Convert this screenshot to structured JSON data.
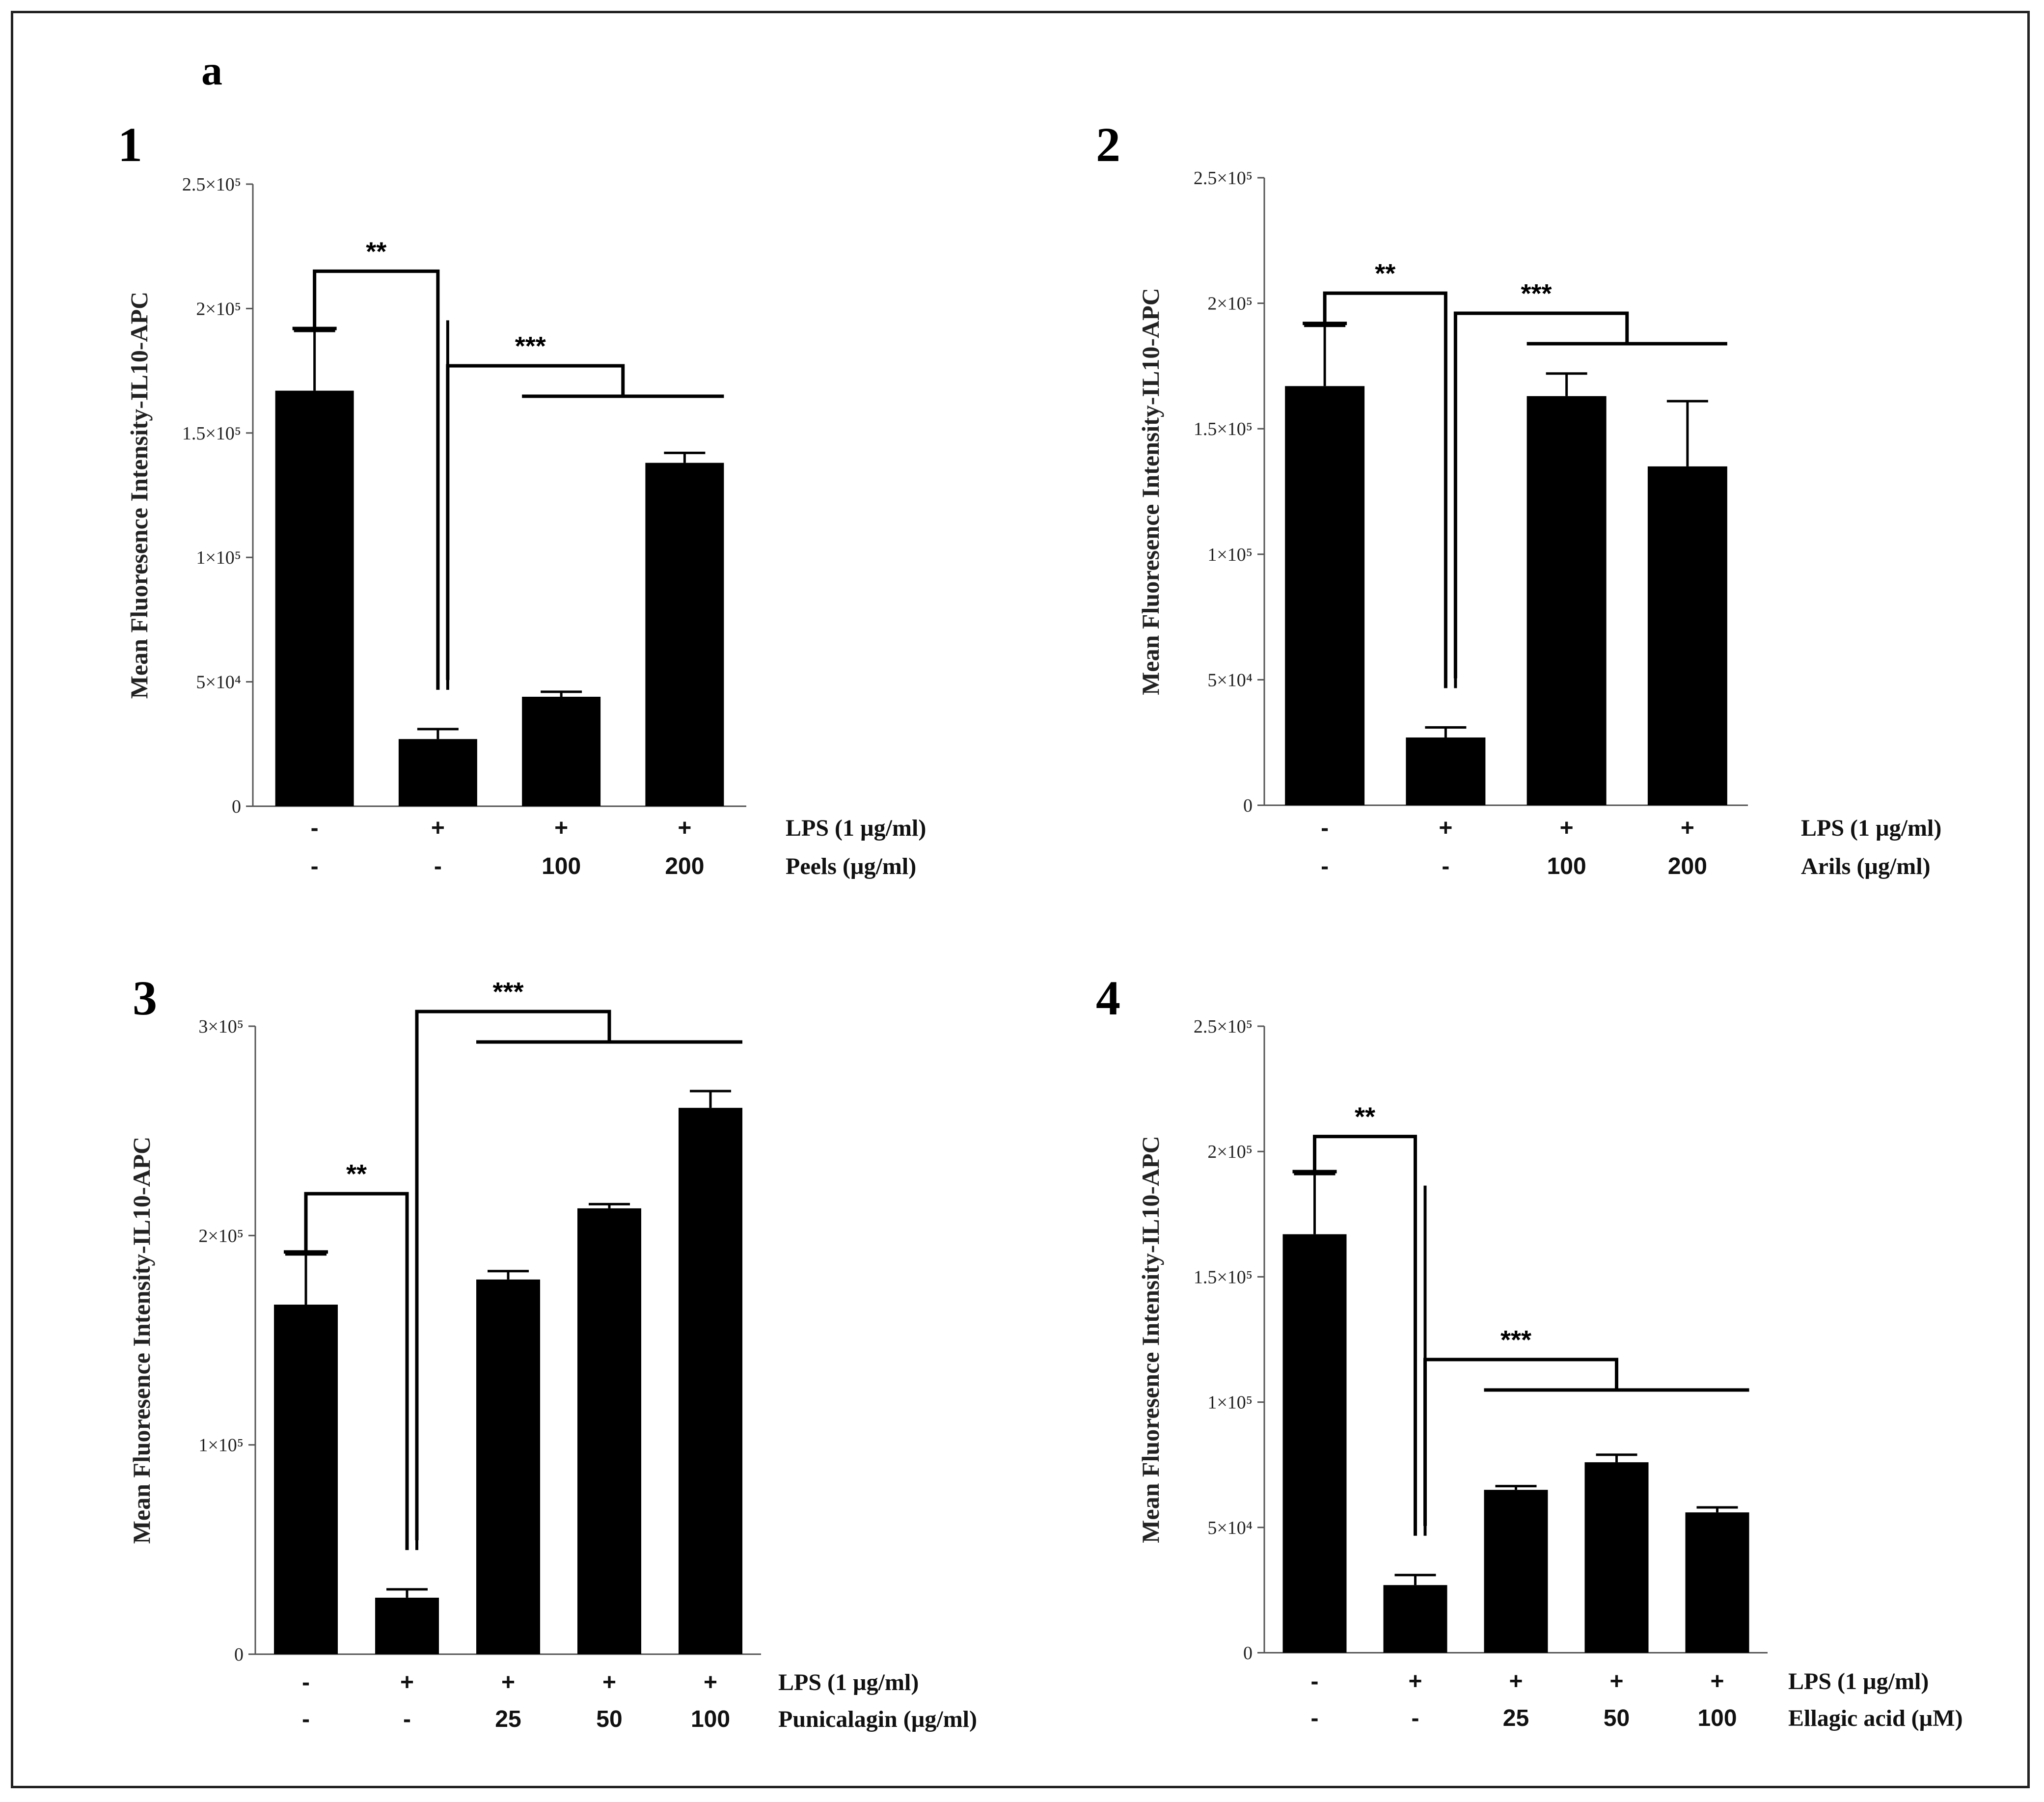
{
  "figure_label": "a",
  "colors": {
    "bar": "#000000",
    "axis": "#555555",
    "text": "#111111"
  },
  "chart_data": [
    {
      "panel": "1",
      "type": "bar",
      "ylabel": "Mean Fluoresence Intensity-IL10-APC",
      "ylim": [
        0,
        250000
      ],
      "yticks": [
        {
          "value": 0,
          "label": "0"
        },
        {
          "value": 50000,
          "label": "5×10⁴"
        },
        {
          "value": 100000,
          "label": "1×10⁵"
        },
        {
          "value": 150000,
          "label": "1.5×10⁵"
        },
        {
          "value": 200000,
          "label": "2×10⁵"
        },
        {
          "value": 250000,
          "label": "2.5×10⁵"
        }
      ],
      "values": [
        167000,
        27000,
        44000,
        138000
      ],
      "errors": [
        24000,
        4000,
        2000,
        4000
      ],
      "condition_rows": [
        {
          "label": "LPS  (1 µg/ml)",
          "values": [
            "-",
            "+",
            "+",
            "+"
          ]
        },
        {
          "label": "Peels (µg/ml)",
          "values": [
            "-",
            "-",
            "100",
            "200"
          ]
        }
      ],
      "significance": [
        {
          "text": "**",
          "from": 0,
          "to": [
            1
          ],
          "level": 215000
        },
        {
          "text": "***",
          "from": 1,
          "to": [
            2,
            3
          ],
          "level": 177000
        }
      ]
    },
    {
      "panel": "2",
      "type": "bar",
      "ylabel": "Mean Fluoresence Intensity-IL10-APC",
      "ylim": [
        0,
        250000
      ],
      "yticks": [
        {
          "value": 0,
          "label": "0"
        },
        {
          "value": 50000,
          "label": "5×10⁴"
        },
        {
          "value": 100000,
          "label": "1×10⁵"
        },
        {
          "value": 150000,
          "label": "1.5×10⁵"
        },
        {
          "value": 200000,
          "label": "2×10⁵"
        },
        {
          "value": 250000,
          "label": "2.5×10⁵"
        }
      ],
      "values": [
        167000,
        27000,
        163000,
        135000
      ],
      "errors": [
        24000,
        4000,
        9000,
        26000
      ],
      "condition_rows": [
        {
          "label": "LPS  (1 µg/ml)",
          "values": [
            "-",
            "+",
            "+",
            "+"
          ]
        },
        {
          "label": "Arils (µg/ml)",
          "values": [
            "-",
            "-",
            "100",
            "200"
          ]
        }
      ],
      "significance": [
        {
          "text": "**",
          "from": 0,
          "to": [
            1
          ],
          "level": 204000
        },
        {
          "text": "***",
          "from": 1,
          "to": [
            2,
            3
          ],
          "level": 196000
        }
      ]
    },
    {
      "panel": "3",
      "type": "bar",
      "ylabel": "Mean Fluoresence Intensity-IL10-APC",
      "ylim": [
        0,
        300000
      ],
      "yticks": [
        {
          "value": 0,
          "label": "0"
        },
        {
          "value": 100000,
          "label": "1×10⁵"
        },
        {
          "value": 200000,
          "label": "2×10⁵"
        },
        {
          "value": 300000,
          "label": "3×10⁵"
        }
      ],
      "values": [
        167000,
        27000,
        179000,
        213000,
        261000
      ],
      "errors": [
        24000,
        4000,
        4000,
        2000,
        8000
      ],
      "condition_rows": [
        {
          "label": "LPS  (1 µg/ml)",
          "values": [
            "-",
            "+",
            "+",
            "+",
            "+"
          ]
        },
        {
          "label": "Punicalagin (µg/ml)",
          "values": [
            "-",
            "-",
            "25",
            "50",
            "100"
          ]
        }
      ],
      "significance": [
        {
          "text": "**",
          "from": 0,
          "to": [
            1
          ],
          "level": 220000
        },
        {
          "text": "***",
          "from": 1,
          "to": [
            2,
            3,
            4
          ],
          "level": 307000
        }
      ]
    },
    {
      "panel": "4",
      "type": "bar",
      "ylabel": "Mean Fluoresence Intensity-IL10-APC",
      "ylim": [
        0,
        250000
      ],
      "yticks": [
        {
          "value": 0,
          "label": "0"
        },
        {
          "value": 50000,
          "label": "5×10⁴"
        },
        {
          "value": 100000,
          "label": "1×10⁵"
        },
        {
          "value": 150000,
          "label": "1.5×10⁵"
        },
        {
          "value": 200000,
          "label": "2×10⁵"
        },
        {
          "value": 250000,
          "label": "2.5×10⁵"
        }
      ],
      "values": [
        167000,
        27000,
        65000,
        76000,
        56000
      ],
      "errors": [
        24000,
        4000,
        1500,
        3000,
        2000
      ],
      "condition_rows": [
        {
          "label": "LPS  (1 µg/ml)",
          "values": [
            "-",
            "+",
            "+",
            "+",
            "+"
          ]
        },
        {
          "label": "Ellagic acid (µM)",
          "values": [
            "-",
            "-",
            "25",
            "50",
            "100"
          ]
        }
      ],
      "significance": [
        {
          "text": "**",
          "from": 0,
          "to": [
            1
          ],
          "level": 206000
        },
        {
          "text": "***",
          "from": 1,
          "to": [
            2,
            3,
            4
          ],
          "level": 117000
        }
      ]
    }
  ]
}
